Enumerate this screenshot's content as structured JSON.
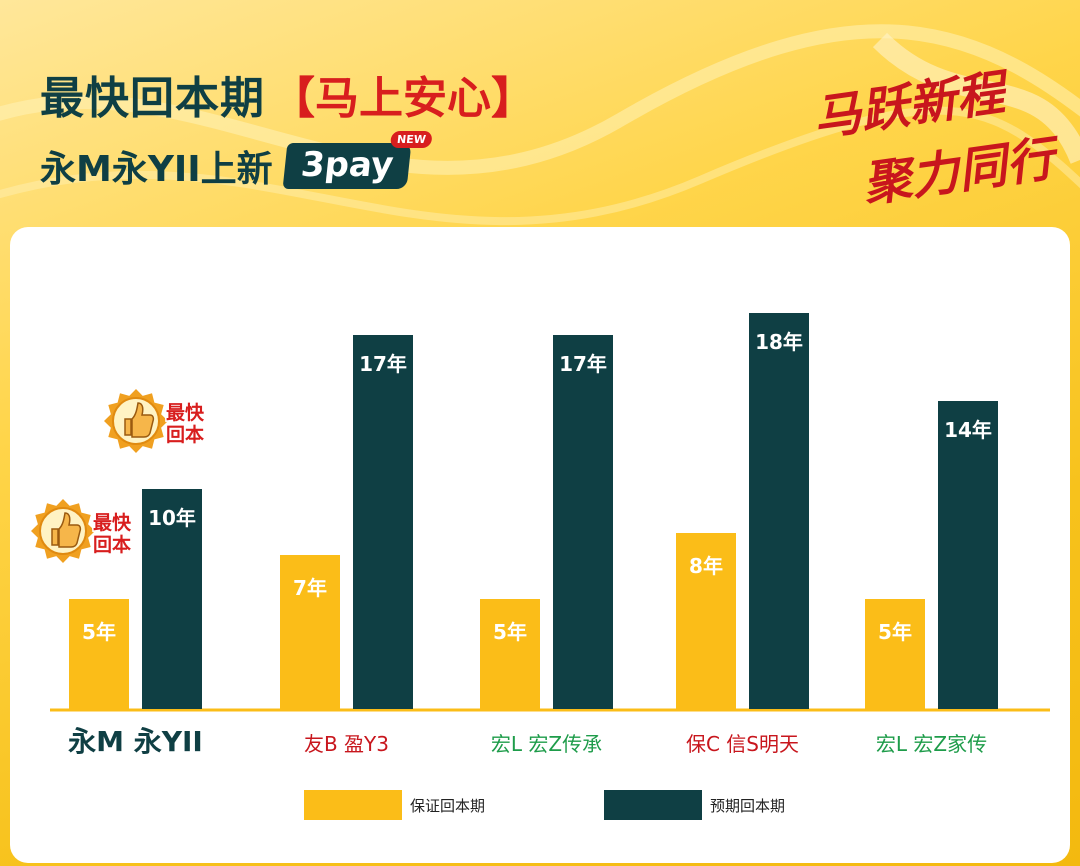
{
  "header": {
    "title": "最快回本期",
    "title_highlight": "【马上安心】",
    "subtitle": "永M永YII上新",
    "badge": "3pay",
    "badge_new": "NEW"
  },
  "slogan": {
    "line1": "马跃新程",
    "line2": "聚力同行"
  },
  "colors": {
    "guaranteed": "#fbbd18",
    "expected": "#0f3f44",
    "label_red": "#c8161d",
    "label_green": "#1e9c4a",
    "badge_text": "#d81e1e"
  },
  "chart_data": {
    "type": "bar",
    "categories": [
      "永M 永YII",
      "友B 盈Y3",
      "宏L 宏Z传承",
      "保C 信S明天",
      "宏L 宏Z家传"
    ],
    "category_colors": [
      "#0f3f44",
      "#c8161d",
      "#1e9c4a",
      "#c8161d",
      "#1e9c4a"
    ],
    "series": [
      {
        "name": "保证回本期",
        "values": [
          5,
          7,
          5,
          8,
          5
        ],
        "labels": [
          "5年",
          "7年",
          "5年",
          "8年",
          "5年"
        ],
        "color": "#fbbd18"
      },
      {
        "name": "预期回本期",
        "values": [
          10,
          17,
          17,
          18,
          14
        ],
        "labels": [
          "10年",
          "17年",
          "17年",
          "18年",
          "14年"
        ],
        "color": "#0f3f44"
      }
    ],
    "ylim": [
      0,
      18
    ],
    "annotations": [
      {
        "text": "最快回本",
        "category": 0,
        "series": 0
      },
      {
        "text": "最快回本",
        "category": 0,
        "series": 1
      }
    ],
    "grid": false,
    "legend_position": "bottom"
  }
}
